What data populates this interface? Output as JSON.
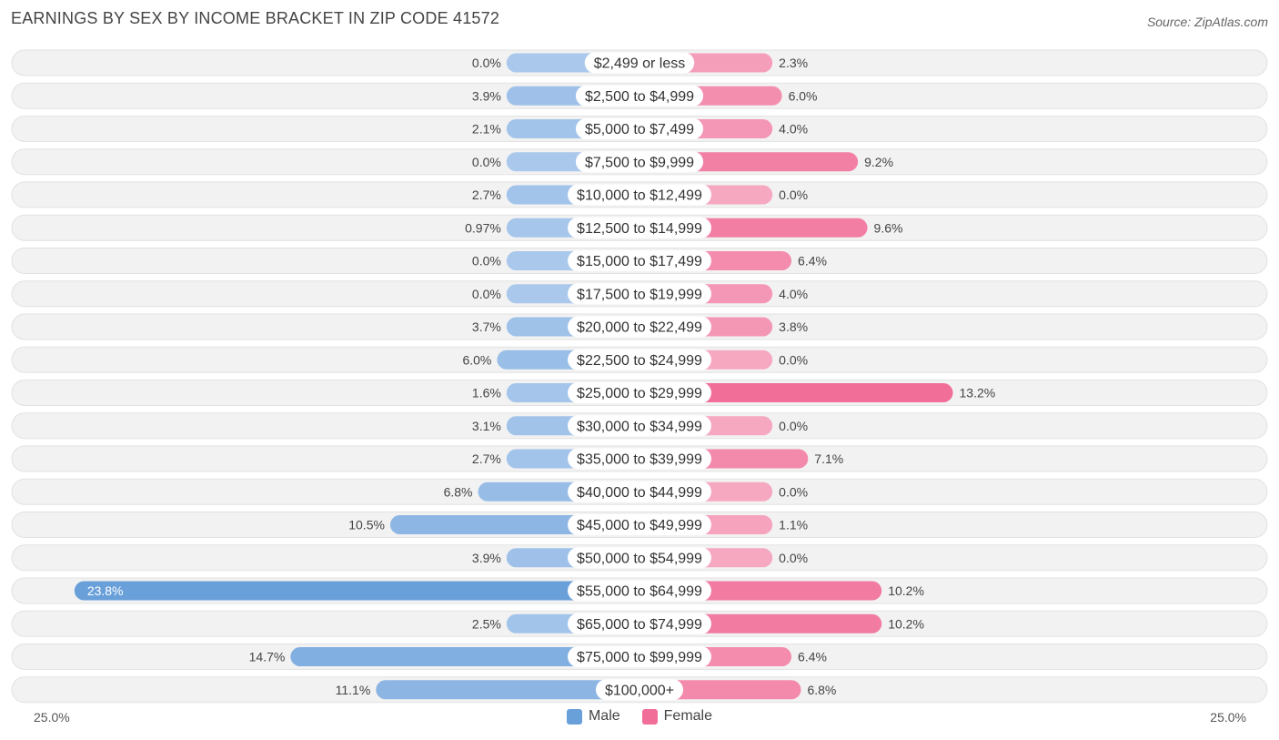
{
  "title": "EARNINGS BY SEX BY INCOME BRACKET IN ZIP CODE 41572",
  "source": "Source: ZipAtlas.com",
  "axis": {
    "left_label": "25.0%",
    "right_label": "25.0%"
  },
  "legend": {
    "male_label": "Male",
    "female_label": "Female"
  },
  "colors": {
    "male": "#6aa0da",
    "male_light": "#a9c8ec",
    "female": "#f06e98",
    "female_light": "#f6a8c1",
    "row_bg": "#f2f2f2"
  },
  "chart_data": {
    "type": "bar",
    "orientation": "horizontal-diverging",
    "title": "EARNINGS BY SEX BY INCOME BRACKET IN ZIP CODE 41572",
    "xlim": [
      -25,
      25
    ],
    "categories": [
      "$2,499 or less",
      "$2,500 to $4,999",
      "$5,000 to $7,499",
      "$7,500 to $9,999",
      "$10,000 to $12,499",
      "$12,500 to $14,999",
      "$15,000 to $17,499",
      "$17,500 to $19,999",
      "$20,000 to $22,499",
      "$22,500 to $24,999",
      "$25,000 to $29,999",
      "$30,000 to $34,999",
      "$35,000 to $39,999",
      "$40,000 to $44,999",
      "$45,000 to $49,999",
      "$50,000 to $54,999",
      "$55,000 to $64,999",
      "$65,000 to $74,999",
      "$75,000 to $99,999",
      "$100,000+"
    ],
    "series": [
      {
        "name": "Male",
        "values": [
          0.0,
          3.9,
          2.1,
          0.0,
          2.7,
          0.97,
          0.0,
          0.0,
          3.7,
          6.0,
          1.6,
          3.1,
          2.7,
          6.8,
          10.5,
          3.9,
          23.8,
          2.5,
          14.7,
          11.1
        ],
        "labels": [
          "0.0%",
          "3.9%",
          "2.1%",
          "0.0%",
          "2.7%",
          "0.97%",
          "0.0%",
          "0.0%",
          "3.7%",
          "6.0%",
          "1.6%",
          "3.1%",
          "2.7%",
          "6.8%",
          "10.5%",
          "3.9%",
          "23.8%",
          "2.5%",
          "14.7%",
          "11.1%"
        ]
      },
      {
        "name": "Female",
        "values": [
          2.3,
          6.0,
          4.0,
          9.2,
          0.0,
          9.6,
          6.4,
          4.0,
          3.8,
          0.0,
          13.2,
          0.0,
          7.1,
          0.0,
          1.1,
          0.0,
          10.2,
          10.2,
          6.4,
          6.8
        ],
        "labels": [
          "2.3%",
          "6.0%",
          "4.0%",
          "9.2%",
          "0.0%",
          "9.6%",
          "6.4%",
          "4.0%",
          "3.8%",
          "0.0%",
          "13.2%",
          "0.0%",
          "7.1%",
          "0.0%",
          "1.1%",
          "0.0%",
          "10.2%",
          "10.2%",
          "6.4%",
          "6.8%"
        ]
      }
    ]
  }
}
